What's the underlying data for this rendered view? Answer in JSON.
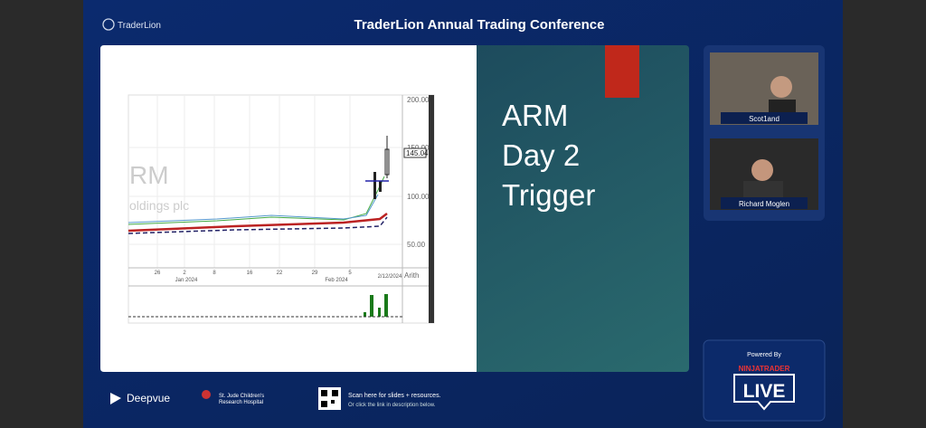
{
  "header": {
    "brand": "TraderLion",
    "title": "TraderLion Annual Trading Conference"
  },
  "slide": {
    "lines": [
      "ARM",
      "Day 2",
      "Trigger"
    ],
    "chart": {
      "ticker": "RM",
      "company": "oldings plc",
      "price_labels": [
        "200.00",
        "150.00",
        "100.00",
        "50.00"
      ],
      "last_price": "145.04",
      "scale": "Arith",
      "dates": [
        "26",
        "2",
        "8",
        "16",
        "22",
        "29",
        "5"
      ],
      "months": [
        "Jan 2024",
        "Feb 2024"
      ],
      "cursor_date": "2/12/2024"
    }
  },
  "participants": [
    {
      "name": "Scot1and"
    },
    {
      "name": "Richard Moglen"
    }
  ],
  "sponsor": {
    "powered_by": "Powered By",
    "brand": "NINJATRADER",
    "badge": "LIVE"
  },
  "footer": {
    "deepvue": "Deepvue",
    "stjude": [
      "St. Jude Children's",
      "Research Hospital"
    ],
    "qr_lines": [
      "Scan here for slides + resources.",
      "Or click the link in description below."
    ]
  }
}
